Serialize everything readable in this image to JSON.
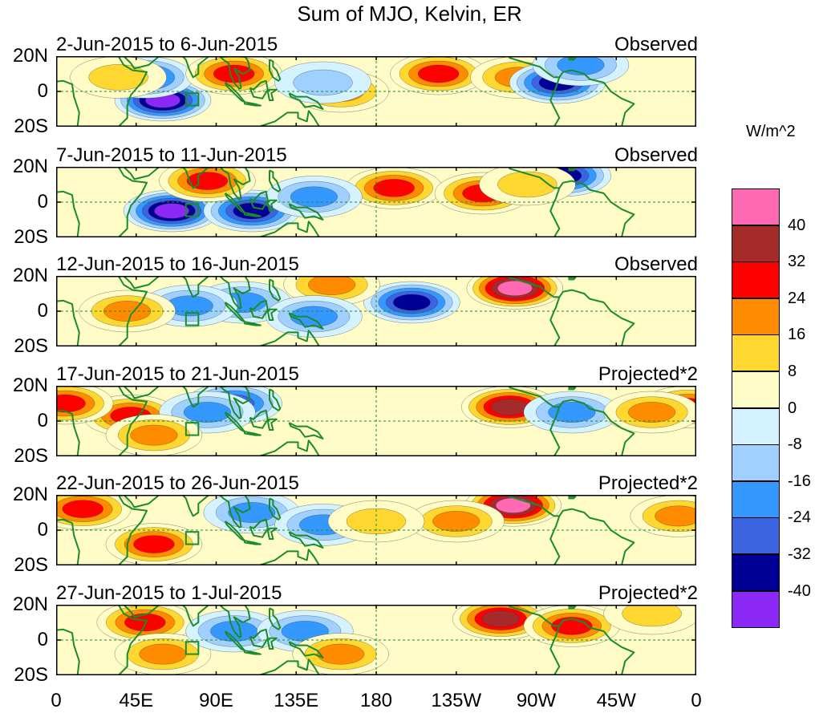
{
  "title": "Sum of MJO, Kelvin, ER",
  "units": "W/m^2",
  "lat_labels": [
    "20N",
    "0",
    "20S"
  ],
  "lon_labels": [
    "0",
    "45E",
    "90E",
    "135E",
    "180",
    "135W",
    "90W",
    "45W",
    "0"
  ],
  "panels": [
    {
      "label": "2-Jun-2015 to 6-Jun-2015",
      "status": "Observed"
    },
    {
      "label": "7-Jun-2015 to 11-Jun-2015",
      "status": "Observed"
    },
    {
      "label": "12-Jun-2015 to 16-Jun-2015",
      "status": "Observed"
    },
    {
      "label": "17-Jun-2015 to 21-Jun-2015",
      "status": "Projected*2"
    },
    {
      "label": "22-Jun-2015 to 26-Jun-2015",
      "status": "Projected*2"
    },
    {
      "label": "27-Jun-2015 to 1-Jul-2015",
      "status": "Projected*2"
    }
  ],
  "colorbar": {
    "labels": [
      "40",
      "32",
      "24",
      "16",
      "8",
      "0",
      "-8",
      "-16",
      "-24",
      "-32",
      "-40"
    ],
    "colors": [
      "#ff69b4",
      "#a52a2a",
      "#ff0000",
      "#ff8c00",
      "#ffd731",
      "#fffcc8",
      "#d4f2ff",
      "#a0d0ff",
      "#3498ff",
      "#3c64e0",
      "#000096",
      "#8c28f5"
    ]
  },
  "colors": {
    "land": "#1a8c2a",
    "background": "#fffcc8"
  },
  "chart_data": {
    "type": "heatmap",
    "title": "Sum of MJO, Kelvin, ER",
    "units": "W/m^2",
    "xlim": [
      0,
      360
    ],
    "ylim": [
      -20,
      20
    ],
    "contour_levels": [
      -40,
      -32,
      -24,
      -16,
      -8,
      0,
      8,
      16,
      24,
      32,
      40
    ],
    "notable_anomalies": [
      {
        "panel": 0,
        "features": [
          {
            "lon": 60,
            "lat": -5,
            "value": -44
          },
          {
            "lon": 50,
            "lat": 8,
            "value": -28
          },
          {
            "lon": 100,
            "lat": 10,
            "value": 28
          },
          {
            "lon": 35,
            "lat": 8,
            "value": 12
          },
          {
            "lon": 215,
            "lat": 10,
            "value": 24
          },
          {
            "lon": 260,
            "lat": 8,
            "value": 20
          },
          {
            "lon": 282,
            "lat": 5,
            "value": -36
          },
          {
            "lon": 295,
            "lat": 15,
            "value": -20
          },
          {
            "lon": 160,
            "lat": 0,
            "value": 20
          },
          {
            "lon": 150,
            "lat": 5,
            "value": -8
          }
        ]
      },
      {
        "panel": 1,
        "features": [
          {
            "lon": 65,
            "lat": -5,
            "value": -44
          },
          {
            "lon": 110,
            "lat": -5,
            "value": -36
          },
          {
            "lon": 85,
            "lat": 12,
            "value": 24
          },
          {
            "lon": 190,
            "lat": 8,
            "value": 24
          },
          {
            "lon": 240,
            "lat": 5,
            "value": 28
          },
          {
            "lon": 285,
            "lat": 15,
            "value": -36
          },
          {
            "lon": 265,
            "lat": 10,
            "value": 12
          },
          {
            "lon": 145,
            "lat": 3,
            "value": -20
          }
        ]
      },
      {
        "panel": 2,
        "features": [
          {
            "lon": 258,
            "lat": 13,
            "value": 40
          },
          {
            "lon": 200,
            "lat": 5,
            "value": -32
          },
          {
            "lon": 105,
            "lat": 5,
            "value": -20
          },
          {
            "lon": 75,
            "lat": 3,
            "value": -16
          },
          {
            "lon": 155,
            "lat": 15,
            "value": 20
          },
          {
            "lon": 40,
            "lat": 0,
            "value": 20
          },
          {
            "lon": 145,
            "lat": -3,
            "value": -16
          }
        ]
      },
      {
        "panel": 3,
        "features": [
          {
            "lon": 255,
            "lat": 8,
            "value": 36
          },
          {
            "lon": 42,
            "lat": 3,
            "value": 24
          },
          {
            "lon": 5,
            "lat": 10,
            "value": 24
          },
          {
            "lon": 355,
            "lat": 8,
            "value": 28
          },
          {
            "lon": 100,
            "lat": 10,
            "value": -24
          },
          {
            "lon": 85,
            "lat": 5,
            "value": -20
          },
          {
            "lon": 55,
            "lat": -8,
            "value": 20
          },
          {
            "lon": 290,
            "lat": 5,
            "value": -16
          },
          {
            "lon": 335,
            "lat": 5,
            "value": 20
          }
        ]
      },
      {
        "panel": 4,
        "features": [
          {
            "lon": 257,
            "lat": 14,
            "value": 44
          },
          {
            "lon": 225,
            "lat": 5,
            "value": 20
          },
          {
            "lon": 15,
            "lat": 12,
            "value": 24
          },
          {
            "lon": 55,
            "lat": -8,
            "value": 24
          },
          {
            "lon": 110,
            "lat": 10,
            "value": -20
          },
          {
            "lon": 150,
            "lat": 3,
            "value": -16
          },
          {
            "lon": 350,
            "lat": 8,
            "value": 20
          },
          {
            "lon": 180,
            "lat": 5,
            "value": 12
          }
        ]
      },
      {
        "panel": 5,
        "features": [
          {
            "lon": 250,
            "lat": 12,
            "value": 32
          },
          {
            "lon": 290,
            "lat": 8,
            "value": 28
          },
          {
            "lon": 50,
            "lat": 10,
            "value": 24
          },
          {
            "lon": 60,
            "lat": -8,
            "value": 16
          },
          {
            "lon": 100,
            "lat": 5,
            "value": -16
          },
          {
            "lon": 140,
            "lat": 5,
            "value": -16
          },
          {
            "lon": 160,
            "lat": -8,
            "value": 20
          },
          {
            "lon": 335,
            "lat": 15,
            "value": 12
          }
        ]
      }
    ]
  }
}
